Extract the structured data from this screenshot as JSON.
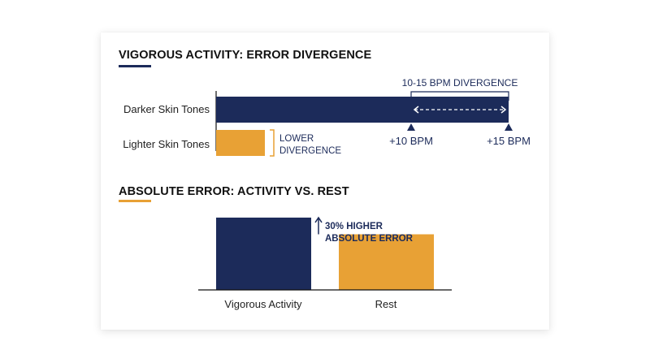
{
  "colors": {
    "navy": "#1c2b5a",
    "gold": "#e8a135",
    "axis": "#111111"
  },
  "chart_data": [
    {
      "type": "bar",
      "orientation": "horizontal",
      "title": "VIGOROUS ACTIVITY: ERROR DIVERGENCE",
      "categories": [
        "Darker Skin Tones",
        "Lighter Skin Tones"
      ],
      "values": [
        15,
        2.5
      ],
      "markers": [
        {
          "label": "+10 BPM",
          "value": 10
        },
        {
          "label": "+15 BPM",
          "value": 15
        }
      ],
      "annotations": {
        "range": "10-15 BPM DIVERGENCE",
        "lower_line1": "LOWER",
        "lower_line2": "DIVERGENCE"
      }
    },
    {
      "type": "bar",
      "title": "ABSOLUTE ERROR: ACTIVITY VS. REST",
      "categories": [
        "Vigorous Activity",
        "Rest"
      ],
      "values": [
        130,
        100
      ],
      "annotation_line1": "30% HIGHER",
      "annotation_line2": "ABSOLUTE ERROR"
    }
  ]
}
